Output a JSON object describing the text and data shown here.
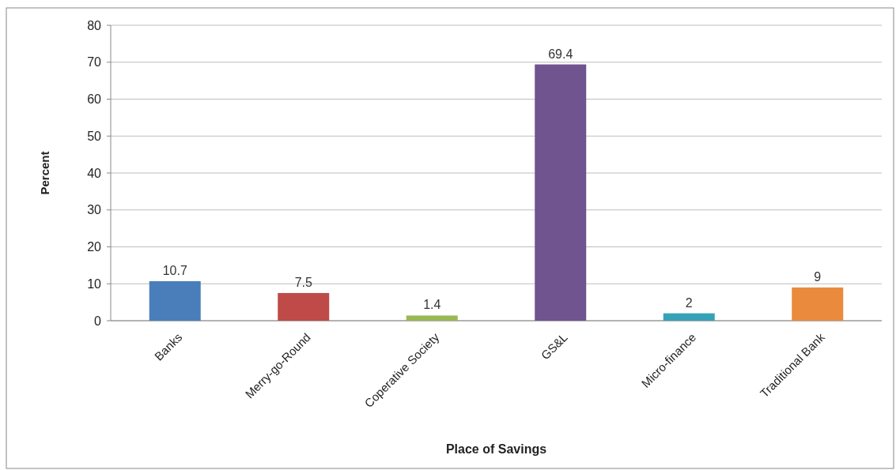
{
  "chart_data": {
    "type": "bar",
    "xlabel": "Place of Savings",
    "ylabel": "Percent",
    "categories": [
      "Banks",
      "Merry-go-Round",
      "Coperative Society",
      "GS&L",
      "Micro-finance",
      "Traditional Bank"
    ],
    "values": [
      10.7,
      7.5,
      1.4,
      69.4,
      2,
      9
    ],
    "colors": [
      "#4a7ebb",
      "#be4b48",
      "#98b954",
      "#6f548f",
      "#35a2b8",
      "#ea8a3c"
    ],
    "ylim": [
      0,
      80
    ],
    "yticks": [
      0,
      10,
      20,
      30,
      40,
      50,
      60,
      70,
      80
    ],
    "grid": "y",
    "data_labels": true
  }
}
